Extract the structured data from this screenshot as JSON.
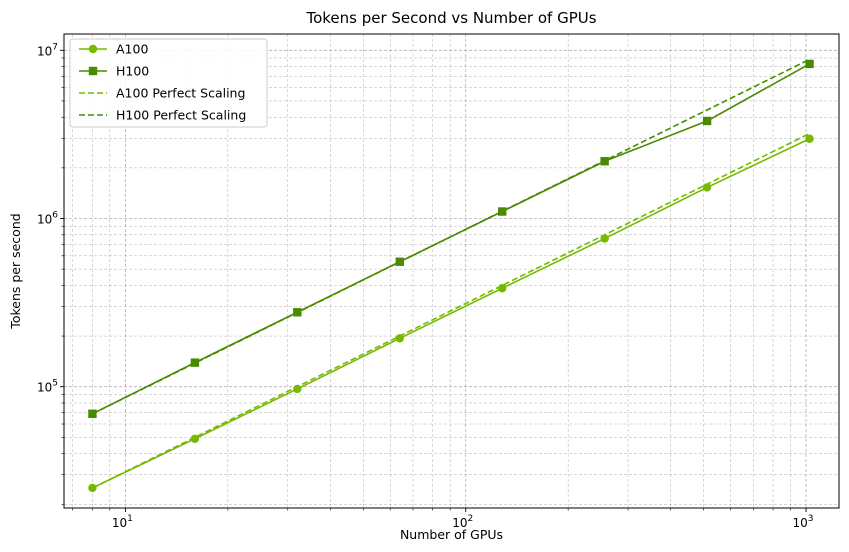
{
  "chart_data": {
    "type": "line",
    "title": "Tokens per Second vs Number of GPUs",
    "xlabel": "Number of GPUs",
    "ylabel": "Tokens per second",
    "xscale": "log",
    "yscale": "log",
    "xlim": [
      6.6,
      1250
    ],
    "ylim": [
      19000,
      12500000
    ],
    "grid": "both (major and minor), dashed",
    "legend_position": "top-left",
    "x_tick_labels": [
      {
        "base": "10",
        "exp": "1",
        "value": 10
      },
      {
        "base": "10",
        "exp": "2",
        "value": 100
      },
      {
        "base": "10",
        "exp": "3",
        "value": 1000
      }
    ],
    "y_tick_labels": [
      {
        "base": "10",
        "exp": "5",
        "value": 100000
      },
      {
        "base": "10",
        "exp": "6",
        "value": 1000000
      },
      {
        "base": "10",
        "exp": "7",
        "value": 10000000
      }
    ],
    "x": [
      8,
      16,
      32,
      64,
      128,
      256,
      512,
      1024
    ],
    "series": [
      {
        "name": "A100",
        "color": "#76b900",
        "style": "solid",
        "marker": "circle",
        "values": [
          25000,
          49000,
          97000,
          194000,
          385000,
          760000,
          1530000,
          2980000
        ]
      },
      {
        "name": "H100",
        "color": "#4a8a00",
        "style": "solid",
        "marker": "square",
        "values": [
          69000,
          139000,
          277000,
          553000,
          1100000,
          2190000,
          3800000,
          8300000
        ]
      },
      {
        "name": "A100 Perfect Scaling",
        "color": "#76b900",
        "style": "dashed",
        "marker": "none",
        "values": [
          25000,
          50000,
          100000,
          200000,
          400000,
          800000,
          1600000,
          3200000
        ]
      },
      {
        "name": "H100 Perfect Scaling",
        "color": "#4a8a00",
        "style": "dashed",
        "marker": "none",
        "values": [
          69000,
          138000,
          276000,
          552000,
          1104000,
          2208000,
          4416000,
          8832000
        ]
      }
    ]
  }
}
